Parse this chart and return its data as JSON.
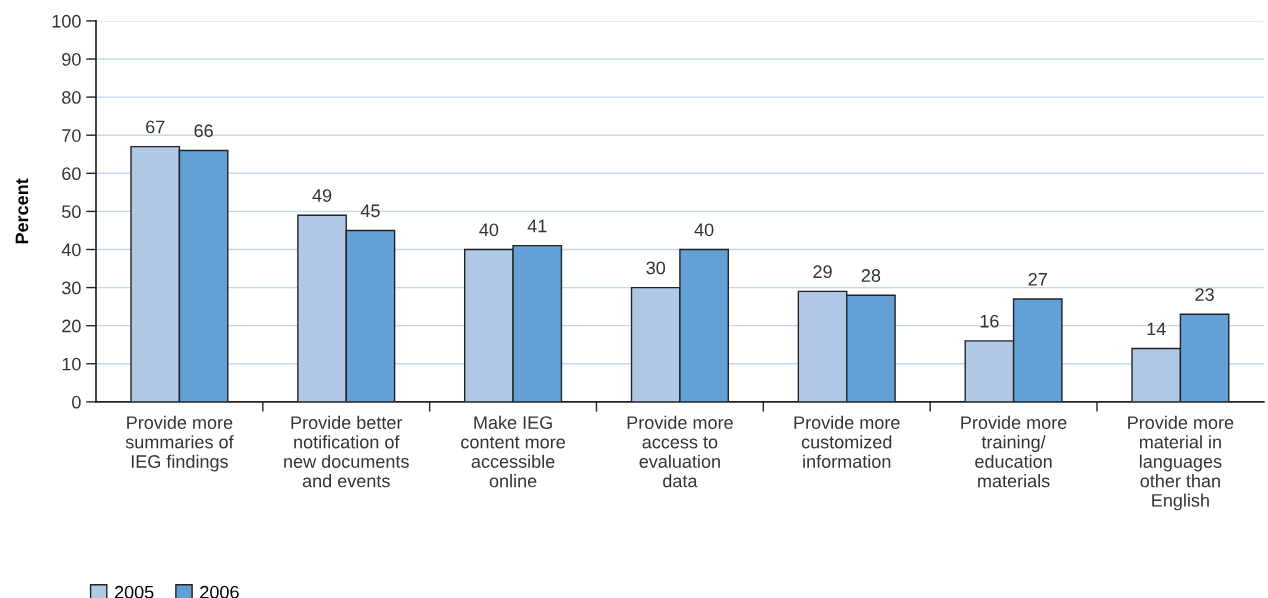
{
  "chart_data": {
    "type": "bar",
    "ylabel": "Percent",
    "categories": [
      "Provide more\nsummaries of\nIEG findings",
      "Provide better\nnotification of\nnew documents\nand events",
      "Make IEG\ncontent more\naccessible\nonline",
      "Provide more\naccess to\nevaluation\ndata",
      "Provide more\ncustomized\ninformation",
      "Provide more\ntraining/\neducation\nmaterials",
      "Provide more\nmaterial in\nlanguages\nother than\nEnglish"
    ],
    "series": [
      {
        "name": "2005",
        "color": "#aec8e6",
        "values": [
          67,
          49,
          40,
          30,
          29,
          16,
          14
        ]
      },
      {
        "name": "2006",
        "color": "#62a0d6",
        "values": [
          66,
          45,
          41,
          40,
          28,
          27,
          23
        ]
      }
    ],
    "ylim": [
      0,
      100
    ],
    "yticks": [
      0,
      10,
      20,
      30,
      40,
      50,
      60,
      70,
      80,
      90,
      100
    ],
    "grid": "y",
    "legend": "bottom left",
    "data_labels": true
  }
}
